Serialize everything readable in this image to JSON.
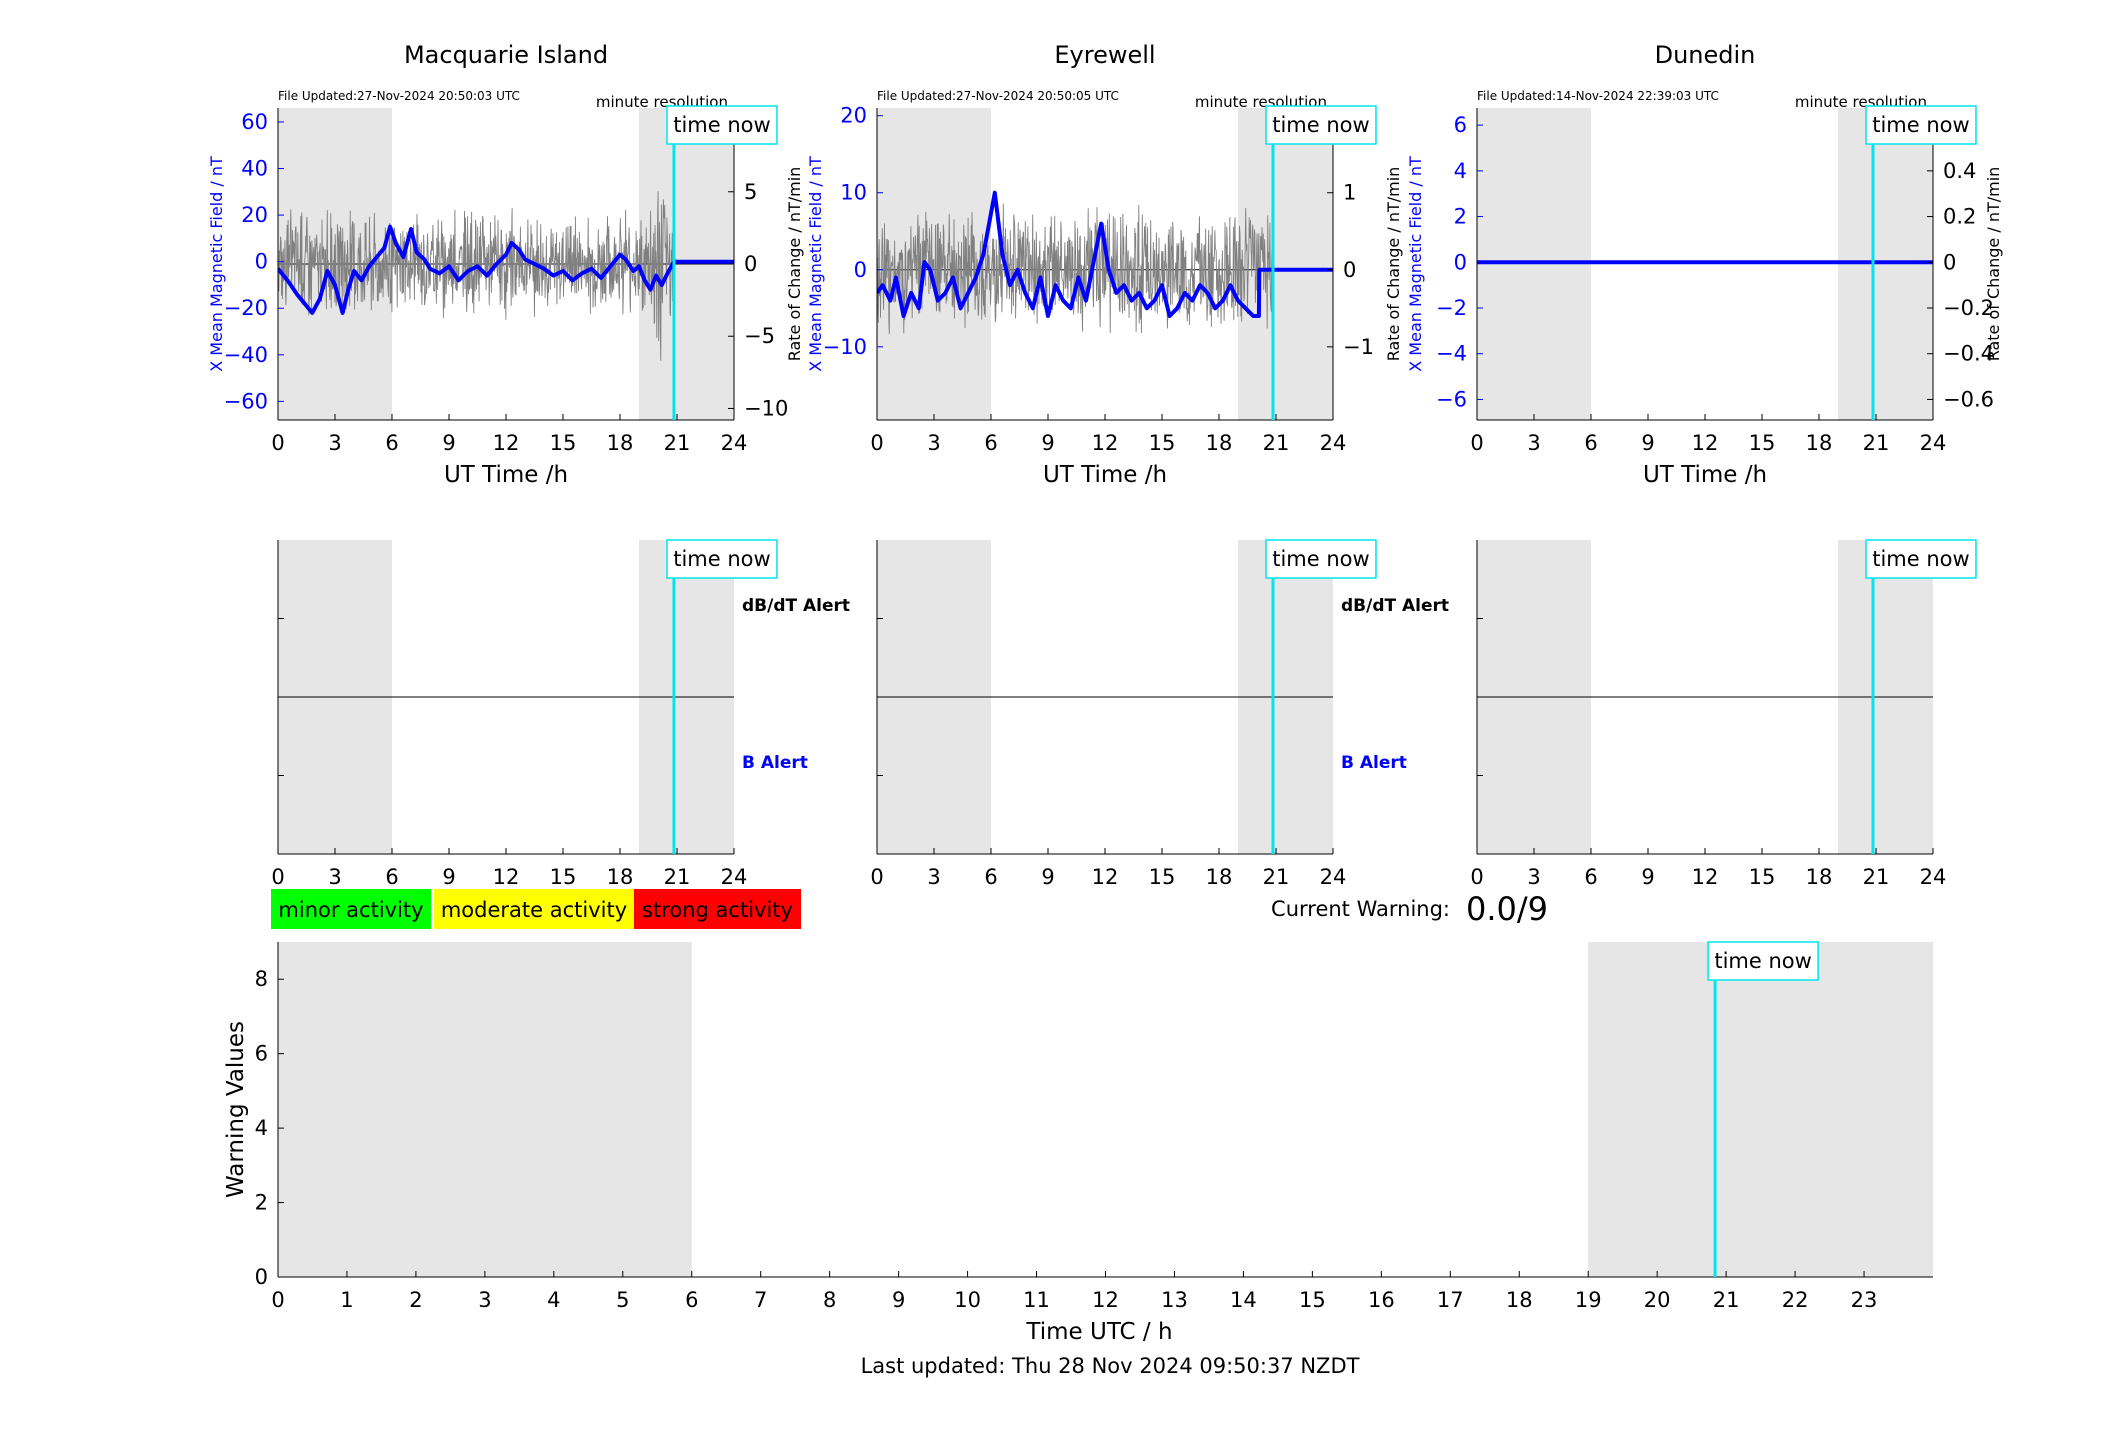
{
  "footer": {
    "last_updated": "Last updated: Thu 28 Nov 2024 09:50:37 NZDT"
  },
  "common": {
    "time_now_label": "time now",
    "time_now_hour": 20.84,
    "night_shading": [
      [
        0,
        6
      ],
      [
        19,
        24
      ]
    ],
    "resolution_label": "minute resolution",
    "x_axis_label": "UT Time /h",
    "x_ticks": [
      0,
      3,
      6,
      9,
      12,
      15,
      18,
      21,
      24
    ],
    "alert_top_label": "dB/dT Alert",
    "alert_bottom_label": "B Alert"
  },
  "colors": {
    "field": "#0000ff",
    "rate": "#808080",
    "time_now": "#00e5ee",
    "shade": "#e6e6e6",
    "minor": "#00ff00",
    "moderate": "#ffff00",
    "strong": "#ff0000"
  },
  "chart_data": [
    {
      "type": "line",
      "title": "Macquarie Island",
      "file_updated": "File Updated:27-Nov-2024 20:50:03 UTC",
      "xlabel": "UT Time /h",
      "ylabel_left": "X Mean Magnetic Field / nT",
      "ylabel_right": "Rate of Change / nT/min",
      "xlim": [
        0,
        24
      ],
      "ylim_left": [
        -68,
        66
      ],
      "ylim_right": [
        -10.8,
        10.8
      ],
      "yticks_left": [
        -60,
        -40,
        -20,
        0,
        20,
        40,
        60
      ],
      "yticks_right": [
        -10,
        -5,
        0,
        5,
        10
      ],
      "rate_noise_amplitude": 4,
      "series": [
        {
          "name": "X Mean Magnetic Field",
          "axis": "left",
          "x": [
            0,
            0.5,
            1,
            1.5,
            1.8,
            2.2,
            2.6,
            3,
            3.4,
            3.7,
            4,
            4.4,
            4.8,
            5.2,
            5.6,
            5.9,
            6.2,
            6.6,
            7,
            7.3,
            7.7,
            8,
            8.5,
            9,
            9.5,
            10,
            10.5,
            11,
            11.5,
            12,
            12.3,
            12.7,
            13,
            13.5,
            14,
            14.5,
            15,
            15.5,
            16,
            16.5,
            17,
            17.5,
            18,
            18.3,
            18.7,
            19,
            19.3,
            19.6,
            19.9,
            20.2,
            20.5,
            20.84,
            21,
            24
          ],
          "y": [
            -3,
            -8,
            -14,
            -19,
            -22,
            -16,
            -4,
            -10,
            -22,
            -12,
            -4,
            -8,
            -2,
            2,
            6,
            15,
            8,
            2,
            14,
            4,
            1,
            -3,
            -5,
            -2,
            -8,
            -4,
            -2,
            -6,
            -1,
            3,
            8,
            5,
            1,
            -1,
            -3,
            -6,
            -4,
            -8,
            -5,
            -3,
            -7,
            -2,
            3,
            1,
            -4,
            -2,
            -8,
            -12,
            -6,
            -10,
            -5,
            0,
            0,
            0
          ]
        },
        {
          "name": "Rate of Change",
          "axis": "right",
          "style": "noise"
        }
      ]
    },
    {
      "type": "line",
      "title": "Eyrewell",
      "file_updated": "File Updated:27-Nov-2024 20:50:05 UTC",
      "xlabel": "UT Time /h",
      "ylabel_left": "X Mean Magnetic Field / nT",
      "ylabel_right": "Rate of Change / nT/min",
      "xlim": [
        0,
        24
      ],
      "ylim_left": [
        -19.5,
        21
      ],
      "ylim_right": [
        -1.95,
        2.1
      ],
      "yticks_left": [
        -10,
        0,
        10,
        20
      ],
      "yticks_right": [
        -1,
        0,
        1,
        2
      ],
      "rate_noise_amplitude": 0.9,
      "series": [
        {
          "name": "X Mean Magnetic Field",
          "axis": "left",
          "x": [
            0,
            0.3,
            0.7,
            1,
            1.4,
            1.8,
            2.2,
            2.5,
            2.8,
            3.2,
            3.6,
            4,
            4.4,
            4.8,
            5.2,
            5.6,
            5.9,
            6.2,
            6.6,
            7,
            7.4,
            7.8,
            8.2,
            8.6,
            9,
            9.4,
            9.8,
            10.2,
            10.6,
            11,
            11.4,
            11.8,
            12.2,
            12.6,
            13,
            13.4,
            13.8,
            14.2,
            14.6,
            15,
            15.4,
            15.8,
            16.2,
            16.6,
            17,
            17.4,
            17.8,
            18.2,
            18.6,
            19,
            19.4,
            19.8,
            20.1,
            20.12,
            20.84,
            21,
            24
          ],
          "y": [
            -3,
            -2,
            -4,
            -1,
            -6,
            -3,
            -5,
            1,
            0,
            -4,
            -3,
            -1,
            -5,
            -3,
            -1,
            2,
            6,
            10,
            2,
            -2,
            0,
            -3,
            -5,
            -1,
            -6,
            -2,
            -4,
            -5,
            -1,
            -4,
            1,
            6,
            0,
            -3,
            -2,
            -4,
            -3,
            -5,
            -4,
            -2,
            -6,
            -5,
            -3,
            -4,
            -2,
            -3,
            -5,
            -4,
            -2,
            -4,
            -5,
            -6,
            -6,
            0,
            0,
            0,
            0
          ]
        },
        {
          "name": "Rate of Change",
          "axis": "right",
          "style": "noise"
        }
      ]
    },
    {
      "type": "line",
      "title": "Dunedin",
      "file_updated": "File Updated:14-Nov-2024 22:39:03 UTC",
      "xlabel": "UT Time /h",
      "ylabel_left": "X Mean Magnetic Field / nT",
      "ylabel_right": "Rate of Change / nT/min",
      "xlim": [
        0,
        24
      ],
      "ylim_left": [
        -6.9,
        6.75
      ],
      "ylim_right": [
        -0.69,
        0.675
      ],
      "yticks_left": [
        -6,
        -4,
        -2,
        0,
        2,
        4,
        6
      ],
      "yticks_right": [
        -0.6,
        -0.4,
        -0.2,
        0,
        0.2,
        0.4,
        0.6
      ],
      "rate_noise_amplitude": 0,
      "series": [
        {
          "name": "X Mean Magnetic Field",
          "axis": "left",
          "x": [
            0,
            24
          ],
          "y": [
            0,
            0
          ]
        }
      ]
    }
  ],
  "legend": {
    "minor": "minor activity",
    "moderate": "moderate activity",
    "strong": "strong activity"
  },
  "current_warning": {
    "label": "Current Warning:",
    "value": "0.0/9"
  },
  "warning_chart": {
    "type": "bar",
    "xlabel": "Time UTC / h",
    "ylabel": "Warning Values",
    "xlim": [
      0,
      24
    ],
    "ylim": [
      0,
      9
    ],
    "x_ticks": [
      0,
      1,
      2,
      3,
      4,
      5,
      6,
      7,
      8,
      9,
      10,
      11,
      12,
      13,
      14,
      15,
      16,
      17,
      18,
      19,
      20,
      21,
      22,
      23
    ],
    "y_ticks": [
      0,
      2,
      4,
      6,
      8
    ],
    "night_shading": [
      [
        0,
        6
      ],
      [
        19,
        24
      ]
    ],
    "time_now_hour": 20.84,
    "values": []
  }
}
